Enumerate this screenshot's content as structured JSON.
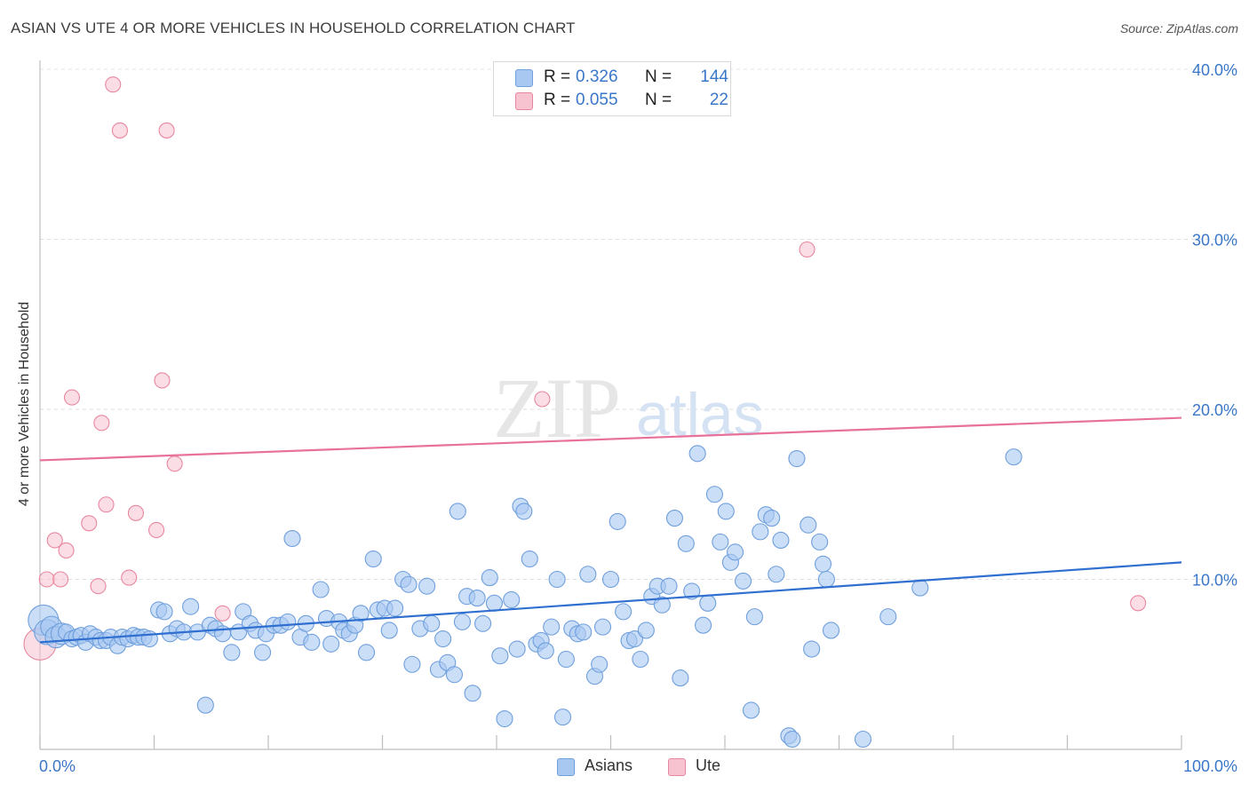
{
  "title": "ASIAN VS UTE 4 OR MORE VEHICLES IN HOUSEHOLD CORRELATION CHART",
  "source": "Source: ZipAtlas.com",
  "watermark": {
    "zip": "ZIP",
    "atlas": "atlas"
  },
  "legend": {
    "rows": [
      {
        "r_label": "R =",
        "r_value": "0.326",
        "n_label": "N =",
        "n_value": "144",
        "color": "#a9c8f1",
        "border": "#6f9fdc"
      },
      {
        "r_label": "R =",
        "r_value": "0.055",
        "n_label": "N =",
        "n_value": "22",
        "color": "#f8c3d0",
        "border": "#e9879f"
      }
    ]
  },
  "bottom_legend": [
    {
      "label": "Asians",
      "color": "#a9c8f1",
      "border": "#6f9fdc"
    },
    {
      "label": "Ute",
      "color": "#f8c3d0",
      "border": "#e9879f"
    }
  ],
  "chart_data": {
    "type": "scatter",
    "title": "ASIAN VS UTE 4 OR MORE VEHICLES IN HOUSEHOLD CORRELATION CHART",
    "xlabel": "",
    "ylabel": "4 or more Vehicles in Household",
    "xlim": [
      0,
      100
    ],
    "ylim": [
      0,
      40
    ],
    "x_tick_labels": [
      "0.0%",
      "100.0%"
    ],
    "y_tick_labels": [
      "10.0%",
      "20.0%",
      "30.0%",
      "40.0%"
    ],
    "y_ticks": [
      10,
      20,
      30,
      40
    ],
    "grid": true,
    "colors": {
      "asians_fill": "#a9c8f1",
      "asians_stroke": "#6f9fdc",
      "asians_line": "#2f6fcf",
      "ute_fill": "#f8c3d0",
      "ute_stroke": "#e9879f",
      "ute_line": "#e7719a",
      "tick_label": "#3a77c8"
    },
    "series": [
      {
        "name": "Asians",
        "trend": {
          "x": [
            0,
            100
          ],
          "y": [
            6.3,
            11.0
          ]
        },
        "points": [
          [
            0.3,
            7.6
          ],
          [
            0.6,
            6.9
          ],
          [
            1.0,
            7.2
          ],
          [
            1.4,
            6.6
          ],
          [
            1.9,
            6.8
          ],
          [
            2.3,
            6.9
          ],
          [
            2.8,
            6.5
          ],
          [
            3.2,
            6.6
          ],
          [
            3.6,
            6.7
          ],
          [
            4.0,
            6.3
          ],
          [
            4.4,
            6.8
          ],
          [
            4.9,
            6.6
          ],
          [
            5.3,
            6.4
          ],
          [
            5.8,
            6.4
          ],
          [
            6.2,
            6.6
          ],
          [
            6.8,
            6.1
          ],
          [
            7.2,
            6.6
          ],
          [
            7.7,
            6.5
          ],
          [
            8.2,
            6.7
          ],
          [
            8.6,
            6.6
          ],
          [
            9.1,
            6.6
          ],
          [
            9.6,
            6.5
          ],
          [
            10.4,
            8.2
          ],
          [
            10.9,
            8.1
          ],
          [
            11.4,
            6.8
          ],
          [
            12.0,
            7.1
          ],
          [
            12.6,
            6.9
          ],
          [
            13.2,
            8.4
          ],
          [
            13.8,
            6.9
          ],
          [
            14.5,
            2.6
          ],
          [
            14.9,
            7.3
          ],
          [
            15.4,
            7.1
          ],
          [
            16.0,
            6.8
          ],
          [
            16.8,
            5.7
          ],
          [
            17.4,
            6.9
          ],
          [
            17.8,
            8.1
          ],
          [
            18.4,
            7.4
          ],
          [
            18.9,
            7.0
          ],
          [
            19.5,
            5.7
          ],
          [
            19.8,
            6.8
          ],
          [
            20.5,
            7.3
          ],
          [
            21.1,
            7.3
          ],
          [
            21.7,
            7.5
          ],
          [
            22.1,
            12.4
          ],
          [
            22.8,
            6.6
          ],
          [
            23.3,
            7.4
          ],
          [
            23.8,
            6.3
          ],
          [
            24.6,
            9.4
          ],
          [
            25.1,
            7.7
          ],
          [
            25.5,
            6.2
          ],
          [
            26.2,
            7.5
          ],
          [
            26.6,
            7.0
          ],
          [
            27.1,
            6.8
          ],
          [
            27.6,
            7.3
          ],
          [
            28.1,
            8.0
          ],
          [
            28.6,
            5.7
          ],
          [
            29.2,
            11.2
          ],
          [
            29.6,
            8.2
          ],
          [
            30.2,
            8.3
          ],
          [
            30.6,
            7.0
          ],
          [
            31.1,
            8.3
          ],
          [
            31.8,
            10.0
          ],
          [
            32.3,
            9.7
          ],
          [
            32.6,
            5.0
          ],
          [
            33.3,
            7.1
          ],
          [
            33.9,
            9.6
          ],
          [
            34.3,
            7.4
          ],
          [
            34.9,
            4.7
          ],
          [
            35.3,
            6.5
          ],
          [
            35.7,
            5.1
          ],
          [
            36.3,
            4.4
          ],
          [
            36.6,
            14.0
          ],
          [
            37.0,
            7.5
          ],
          [
            37.4,
            9.0
          ],
          [
            37.9,
            3.3
          ],
          [
            38.3,
            8.9
          ],
          [
            38.8,
            7.4
          ],
          [
            39.4,
            10.1
          ],
          [
            39.8,
            8.6
          ],
          [
            40.3,
            5.5
          ],
          [
            40.7,
            1.8
          ],
          [
            41.3,
            8.8
          ],
          [
            41.8,
            5.9
          ],
          [
            42.1,
            14.3
          ],
          [
            42.4,
            14.0
          ],
          [
            42.9,
            11.2
          ],
          [
            43.5,
            6.2
          ],
          [
            43.9,
            6.4
          ],
          [
            44.3,
            5.8
          ],
          [
            44.8,
            7.2
          ],
          [
            45.3,
            10.0
          ],
          [
            45.8,
            1.9
          ],
          [
            46.1,
            5.3
          ],
          [
            46.6,
            7.1
          ],
          [
            47.1,
            6.8
          ],
          [
            47.6,
            6.9
          ],
          [
            48.0,
            10.3
          ],
          [
            48.6,
            4.3
          ],
          [
            49.0,
            5.0
          ],
          [
            49.3,
            7.2
          ],
          [
            50.0,
            10.0
          ],
          [
            50.6,
            13.4
          ],
          [
            51.1,
            8.1
          ],
          [
            51.6,
            6.4
          ],
          [
            52.1,
            6.5
          ],
          [
            52.6,
            5.3
          ],
          [
            53.1,
            7.0
          ],
          [
            53.6,
            9.0
          ],
          [
            54.1,
            9.6
          ],
          [
            54.5,
            8.5
          ],
          [
            55.1,
            9.6
          ],
          [
            55.6,
            13.6
          ],
          [
            56.1,
            4.2
          ],
          [
            56.6,
            12.1
          ],
          [
            57.1,
            9.3
          ],
          [
            57.6,
            17.4
          ],
          [
            58.1,
            7.3
          ],
          [
            58.5,
            8.6
          ],
          [
            59.1,
            15.0
          ],
          [
            59.6,
            12.2
          ],
          [
            60.1,
            14.0
          ],
          [
            60.5,
            11.0
          ],
          [
            60.9,
            11.6
          ],
          [
            61.6,
            9.9
          ],
          [
            62.3,
            2.3
          ],
          [
            62.6,
            7.8
          ],
          [
            63.1,
            12.8
          ],
          [
            63.6,
            13.8
          ],
          [
            64.1,
            13.6
          ],
          [
            64.5,
            10.3
          ],
          [
            64.9,
            12.3
          ],
          [
            65.6,
            0.8
          ],
          [
            65.9,
            0.6
          ],
          [
            66.3,
            17.1
          ],
          [
            67.3,
            13.2
          ],
          [
            67.6,
            5.9
          ],
          [
            68.3,
            12.2
          ],
          [
            68.6,
            10.9
          ],
          [
            68.9,
            10.0
          ],
          [
            69.3,
            7.0
          ],
          [
            72.1,
            0.6
          ],
          [
            74.3,
            7.8
          ],
          [
            77.1,
            9.5
          ],
          [
            85.3,
            17.2
          ]
        ]
      },
      {
        "name": "Ute",
        "trend": {
          "x": [
            0,
            100
          ],
          "y": [
            17.0,
            19.5
          ]
        },
        "points": [
          [
            0.0,
            6.2
          ],
          [
            0.6,
            10.0
          ],
          [
            1.3,
            12.3
          ],
          [
            1.8,
            10.0
          ],
          [
            2.3,
            11.7
          ],
          [
            2.8,
            20.7
          ],
          [
            4.3,
            13.3
          ],
          [
            5.1,
            9.6
          ],
          [
            5.4,
            19.2
          ],
          [
            5.8,
            14.4
          ],
          [
            6.4,
            39.1
          ],
          [
            7.0,
            36.4
          ],
          [
            7.8,
            10.1
          ],
          [
            8.4,
            13.9
          ],
          [
            10.2,
            12.9
          ],
          [
            10.7,
            21.7
          ],
          [
            11.1,
            36.4
          ],
          [
            11.8,
            16.8
          ],
          [
            16.0,
            8.0
          ],
          [
            44.0,
            20.6
          ],
          [
            67.2,
            29.4
          ],
          [
            96.2,
            8.6
          ]
        ]
      }
    ]
  }
}
